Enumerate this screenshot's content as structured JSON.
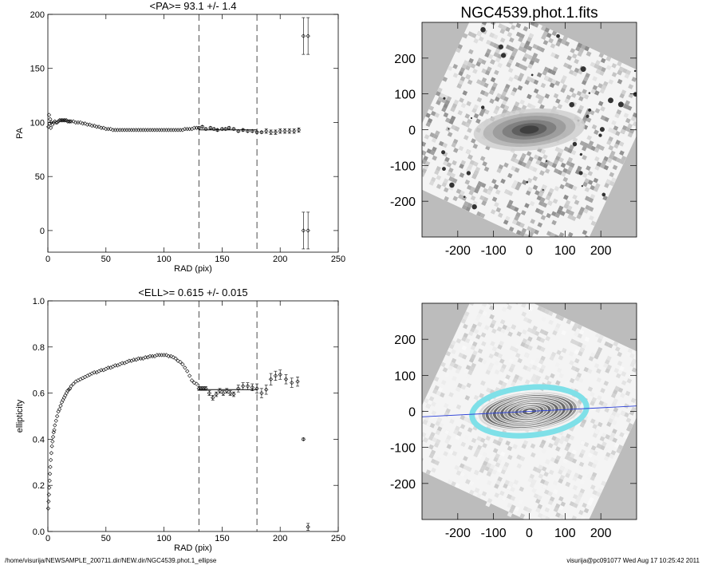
{
  "footer": {
    "left": "/home/visurija/NEWSAMPLE_200711.dir/NEW.dir/NGC4539.phot.1_ellipse",
    "right": "visurija@pc091077  Wed Aug 17 10:25:42 2011"
  },
  "chart_data": [
    {
      "type": "scatter",
      "title": "<PA>=  93.1 +/-   1.4",
      "xlabel": "RAD (pix)",
      "ylabel": "PA",
      "xlim": [
        0,
        250
      ],
      "ylim": [
        -20,
        200
      ],
      "xticks": [
        "0",
        "50",
        "100",
        "150",
        "200",
        "250"
      ],
      "yticks": [
        "0",
        "50",
        "100",
        "150",
        "200"
      ],
      "vlines": [
        130,
        180
      ],
      "mean_segment": {
        "x": [
          130,
          180
        ],
        "y": 93.1
      },
      "points_x": [
        0.5,
        1,
        1.5,
        2,
        2.5,
        3,
        4,
        5,
        6,
        7,
        8,
        9,
        10,
        11,
        12,
        13,
        14,
        15,
        16,
        17,
        18,
        19,
        20,
        22,
        24,
        26,
        28,
        30,
        32,
        34,
        36,
        38,
        40,
        42,
        44,
        46,
        48,
        50,
        52,
        54,
        56,
        58,
        60,
        62,
        64,
        66,
        68,
        70,
        72,
        74,
        76,
        78,
        80,
        82,
        84,
        86,
        88,
        90,
        92,
        94,
        96,
        98,
        100,
        102,
        104,
        106,
        108,
        110,
        112,
        114,
        116,
        118,
        120,
        122,
        124,
        126,
        128,
        130,
        133,
        136,
        140,
        143,
        146,
        150,
        153,
        156,
        160,
        164,
        168,
        172,
        176,
        180,
        184,
        188,
        192,
        196,
        200,
        204,
        208,
        212,
        216,
        220,
        224
      ],
      "points_y": [
        96,
        107,
        99,
        103,
        95,
        100,
        98,
        100,
        101,
        100,
        100,
        101,
        102,
        102,
        102,
        102,
        102,
        102,
        102,
        101,
        101,
        101,
        101,
        101,
        100,
        100,
        100,
        99,
        99,
        98,
        98,
        97,
        97,
        96,
        96,
        95,
        95,
        94,
        94,
        94,
        93,
        93,
        93,
        93,
        93,
        93,
        93,
        93,
        93,
        93,
        93,
        93,
        93,
        93,
        93,
        93,
        93,
        93,
        93,
        93,
        93,
        93,
        93,
        93,
        93,
        93,
        93,
        93,
        93,
        93,
        93,
        94,
        94,
        94,
        94,
        95,
        95,
        95,
        96,
        94,
        95,
        94,
        93,
        94,
        94,
        95,
        94,
        92,
        93,
        92,
        92,
        91,
        91,
        92,
        91,
        91,
        92,
        92,
        92,
        92,
        93,
        180,
        180
      ],
      "point_err": [
        0,
        0,
        0,
        0,
        0,
        0,
        0,
        0,
        0,
        0,
        0,
        0,
        0,
        0,
        0,
        0,
        0,
        0,
        0,
        0,
        0,
        0,
        0,
        0,
        0,
        0,
        0,
        0,
        0,
        0,
        0,
        0,
        0,
        0,
        0,
        0,
        0,
        0,
        0,
        0,
        0,
        0,
        0,
        0,
        0,
        0,
        0,
        0,
        0,
        0,
        0,
        0,
        0,
        0,
        0,
        0,
        0,
        0,
        0,
        0,
        0,
        0,
        0,
        0,
        0,
        0,
        0,
        0,
        0,
        0,
        0,
        0,
        0,
        0,
        0,
        0,
        0,
        1,
        1,
        1,
        1,
        1,
        1,
        1,
        1,
        1,
        1,
        1,
        1,
        1,
        1,
        1,
        1,
        2,
        2,
        2,
        2,
        2,
        2,
        2,
        2,
        17,
        17
      ],
      "extra_points": [
        {
          "x": 220,
          "y": 0,
          "err": 17
        },
        {
          "x": 224,
          "y": 0,
          "err": 17
        }
      ]
    },
    {
      "type": "image",
      "title": "NGC4539.phot.1.fits",
      "xlim": [
        -300,
        300
      ],
      "ylim": [
        -300,
        300
      ],
      "xticks": [
        "-200",
        "-100",
        "0",
        "100",
        "200"
      ],
      "yticks": [
        "-200",
        "-100",
        "0",
        "100",
        "200"
      ]
    },
    {
      "type": "scatter",
      "title": "<ELL>= 0.615 +/-  0.015",
      "xlabel": "RAD (pix)",
      "ylabel": "ellipticity",
      "xlim": [
        0,
        250
      ],
      "ylim": [
        0,
        1
      ],
      "xticks": [
        "0",
        "50",
        "100",
        "150",
        "200",
        "250"
      ],
      "yticks": [
        "0.0",
        "0.2",
        "0.4",
        "0.6",
        "0.8",
        "1.0"
      ],
      "vlines": [
        130,
        180
      ],
      "mean_segment": {
        "x": [
          130,
          180
        ],
        "y": 0.615
      },
      "points_x": [
        0.3,
        0.6,
        0.9,
        1.2,
        1.5,
        1.8,
        2.1,
        2.5,
        3,
        3.5,
        4,
        4.5,
        5,
        5.5,
        6,
        7,
        8,
        9,
        10,
        11,
        12,
        13,
        14,
        15,
        16,
        17,
        18,
        19,
        20,
        22,
        24,
        26,
        28,
        30,
        32,
        34,
        36,
        38,
        40,
        42,
        44,
        46,
        48,
        50,
        52,
        54,
        56,
        58,
        60,
        62,
        64,
        66,
        68,
        70,
        72,
        74,
        76,
        78,
        80,
        82,
        84,
        86,
        88,
        90,
        92,
        94,
        96,
        98,
        100,
        102,
        104,
        106,
        108,
        110,
        112,
        114,
        116,
        118,
        120,
        122,
        124,
        126,
        128,
        130,
        132,
        134,
        136,
        139,
        142,
        145,
        148,
        151,
        154,
        157,
        160,
        164,
        168,
        172,
        176,
        180,
        184,
        188,
        192,
        196,
        200,
        205,
        210,
        215,
        220,
        224
      ],
      "points_y": [
        0.1,
        0.13,
        0.16,
        0.19,
        0.22,
        0.25,
        0.28,
        0.31,
        0.34,
        0.37,
        0.39,
        0.41,
        0.43,
        0.44,
        0.46,
        0.48,
        0.5,
        0.52,
        0.53,
        0.545,
        0.56,
        0.57,
        0.58,
        0.59,
        0.6,
        0.61,
        0.615,
        0.62,
        0.63,
        0.64,
        0.65,
        0.655,
        0.66,
        0.665,
        0.67,
        0.675,
        0.68,
        0.685,
        0.69,
        0.69,
        0.695,
        0.7,
        0.7,
        0.705,
        0.71,
        0.71,
        0.715,
        0.72,
        0.72,
        0.725,
        0.73,
        0.73,
        0.735,
        0.74,
        0.74,
        0.745,
        0.745,
        0.75,
        0.75,
        0.75,
        0.755,
        0.755,
        0.76,
        0.76,
        0.76,
        0.765,
        0.765,
        0.765,
        0.765,
        0.765,
        0.76,
        0.76,
        0.755,
        0.75,
        0.74,
        0.735,
        0.725,
        0.71,
        0.695,
        0.675,
        0.655,
        0.645,
        0.64,
        0.62,
        0.62,
        0.62,
        0.62,
        0.6,
        0.58,
        0.595,
        0.61,
        0.6,
        0.61,
        0.6,
        0.595,
        0.62,
        0.63,
        0.63,
        0.625,
        0.62,
        0.6,
        0.615,
        0.66,
        0.675,
        0.68,
        0.66,
        0.645,
        0.65,
        0.4,
        0.02
      ],
      "point_err": [
        0,
        0,
        0,
        0,
        0,
        0,
        0,
        0,
        0,
        0,
        0,
        0,
        0,
        0,
        0,
        0,
        0,
        0,
        0,
        0,
        0,
        0,
        0,
        0,
        0,
        0,
        0,
        0,
        0,
        0,
        0,
        0,
        0,
        0,
        0,
        0,
        0,
        0,
        0,
        0,
        0,
        0,
        0,
        0,
        0,
        0,
        0,
        0,
        0,
        0,
        0,
        0,
        0,
        0,
        0,
        0,
        0,
        0,
        0,
        0,
        0,
        0,
        0,
        0,
        0,
        0,
        0,
        0,
        0,
        0,
        0,
        0,
        0,
        0,
        0,
        0,
        0,
        0,
        0,
        0,
        0,
        0,
        0,
        0.008,
        0.008,
        0.008,
        0.008,
        0.01,
        0.01,
        0.01,
        0.01,
        0.01,
        0.01,
        0.01,
        0.01,
        0.015,
        0.015,
        0.015,
        0.015,
        0.02,
        0.02,
        0.02,
        0.025,
        0.02,
        0.02,
        0.02,
        0.02,
        0.02,
        0.005,
        0.015
      ]
    },
    {
      "type": "image",
      "title": "",
      "xlim": [
        -300,
        300
      ],
      "ylim": [
        -300,
        300
      ],
      "xticks": [
        "-200",
        "-100",
        "0",
        "100",
        "200"
      ],
      "yticks": [
        "-200",
        "-100",
        "0",
        "100",
        "200"
      ],
      "overlay": {
        "contour_levels": 12,
        "major_axis_pa_deg": 93.1,
        "ellipticity": 0.615,
        "outer_ring_color": "#7fe0e8",
        "contour_color": "#ffffff",
        "axis_line_color": "#2a3fd8"
      }
    }
  ]
}
